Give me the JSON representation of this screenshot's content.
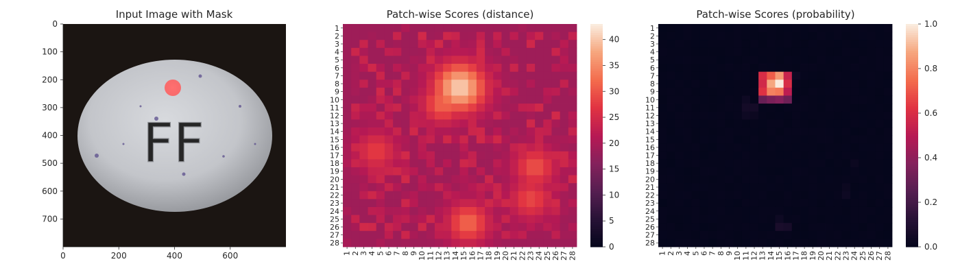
{
  "chart_data": [
    {
      "type": "image",
      "title": "Input Image with Mask",
      "xlim": [
        0,
        800
      ],
      "ylim": [
        800,
        0
      ],
      "x_ticks": [
        "0",
        "200",
        "400",
        "600"
      ],
      "y_ticks": [
        "0",
        "100",
        "200",
        "300",
        "400",
        "500",
        "600",
        "700"
      ],
      "embossed_text": "FF",
      "mask_color": "#ff6b6b"
    },
    {
      "type": "heatmap",
      "title": "Patch-wise Scores (distance)",
      "x_ticks": [
        "1",
        "2",
        "3",
        "4",
        "5",
        "6",
        "7",
        "8",
        "9",
        "10",
        "11",
        "12",
        "13",
        "14",
        "15",
        "16",
        "17",
        "18",
        "19",
        "20",
        "21",
        "22",
        "23",
        "24",
        "25",
        "26",
        "27",
        "28"
      ],
      "y_ticks": [
        "1",
        "2",
        "3",
        "4",
        "5",
        "6",
        "7",
        "8",
        "9",
        "10",
        "11",
        "12",
        "13",
        "14",
        "15",
        "16",
        "17",
        "18",
        "19",
        "20",
        "21",
        "22",
        "23",
        "24",
        "25",
        "26",
        "27",
        "28"
      ],
      "colorbar_range": [
        0,
        43
      ],
      "colorbar_ticks": [
        "0",
        "5",
        "10",
        "15",
        "20",
        "25",
        "30",
        "35",
        "40"
      ],
      "colormap": "rocket",
      "hotspots": [
        {
          "row": 8.5,
          "col": 14.5,
          "peak": 41
        },
        {
          "row": 10.5,
          "col": 12.5,
          "peak": 32
        },
        {
          "row": 18.5,
          "col": 23.5,
          "peak": 30
        },
        {
          "row": 22.5,
          "col": 23,
          "peak": 29
        },
        {
          "row": 25.5,
          "col": 15.5,
          "peak": 32
        },
        {
          "row": 16.5,
          "col": 4.5,
          "peak": 28
        }
      ]
    },
    {
      "type": "heatmap",
      "title": "Patch-wise Scores (probability)",
      "x_ticks": [
        "1",
        "2",
        "3",
        "4",
        "5",
        "6",
        "7",
        "8",
        "9",
        "10",
        "11",
        "12",
        "13",
        "14",
        "15",
        "16",
        "17",
        "18",
        "19",
        "20",
        "21",
        "22",
        "23",
        "24",
        "25",
        "26",
        "27",
        "28"
      ],
      "y_ticks": [
        "1",
        "2",
        "3",
        "4",
        "5",
        "6",
        "7",
        "8",
        "9",
        "10",
        "11",
        "12",
        "13",
        "14",
        "15",
        "16",
        "17",
        "18",
        "19",
        "20",
        "21",
        "22",
        "23",
        "24",
        "25",
        "26",
        "27",
        "28"
      ],
      "colorbar_range": [
        0.0,
        1.0
      ],
      "colorbar_ticks": [
        "0.0",
        "0.2",
        "0.4",
        "0.6",
        "0.8",
        "1.0"
      ],
      "colormap": "rocket",
      "hot_block": {
        "rows": [
          7,
          8,
          9,
          10
        ],
        "cols": [
          13,
          14,
          15,
          16
        ],
        "values": [
          [
            0.6,
            0.72,
            0.85,
            0.55
          ],
          [
            0.58,
            0.88,
            1.0,
            0.6
          ],
          [
            0.62,
            0.8,
            0.78,
            0.52
          ],
          [
            0.3,
            0.35,
            0.38,
            0.32
          ]
        ]
      },
      "faint_cells": [
        {
          "row": 7,
          "col": 17,
          "value": 0.04
        },
        {
          "row": 10,
          "col": 11,
          "value": 0.04
        },
        {
          "row": 11,
          "col": 11,
          "value": 0.06
        },
        {
          "row": 11,
          "col": 12,
          "value": 0.06
        },
        {
          "row": 12,
          "col": 11,
          "value": 0.04
        },
        {
          "row": 12,
          "col": 12,
          "value": 0.03
        },
        {
          "row": 26,
          "col": 15,
          "value": 0.08
        },
        {
          "row": 26,
          "col": 16,
          "value": 0.07
        },
        {
          "row": 25,
          "col": 15,
          "value": 0.04
        },
        {
          "row": 22,
          "col": 23,
          "value": 0.04
        },
        {
          "row": 21,
          "col": 23,
          "value": 0.03
        },
        {
          "row": 18,
          "col": 24,
          "value": 0.03
        }
      ]
    }
  ]
}
